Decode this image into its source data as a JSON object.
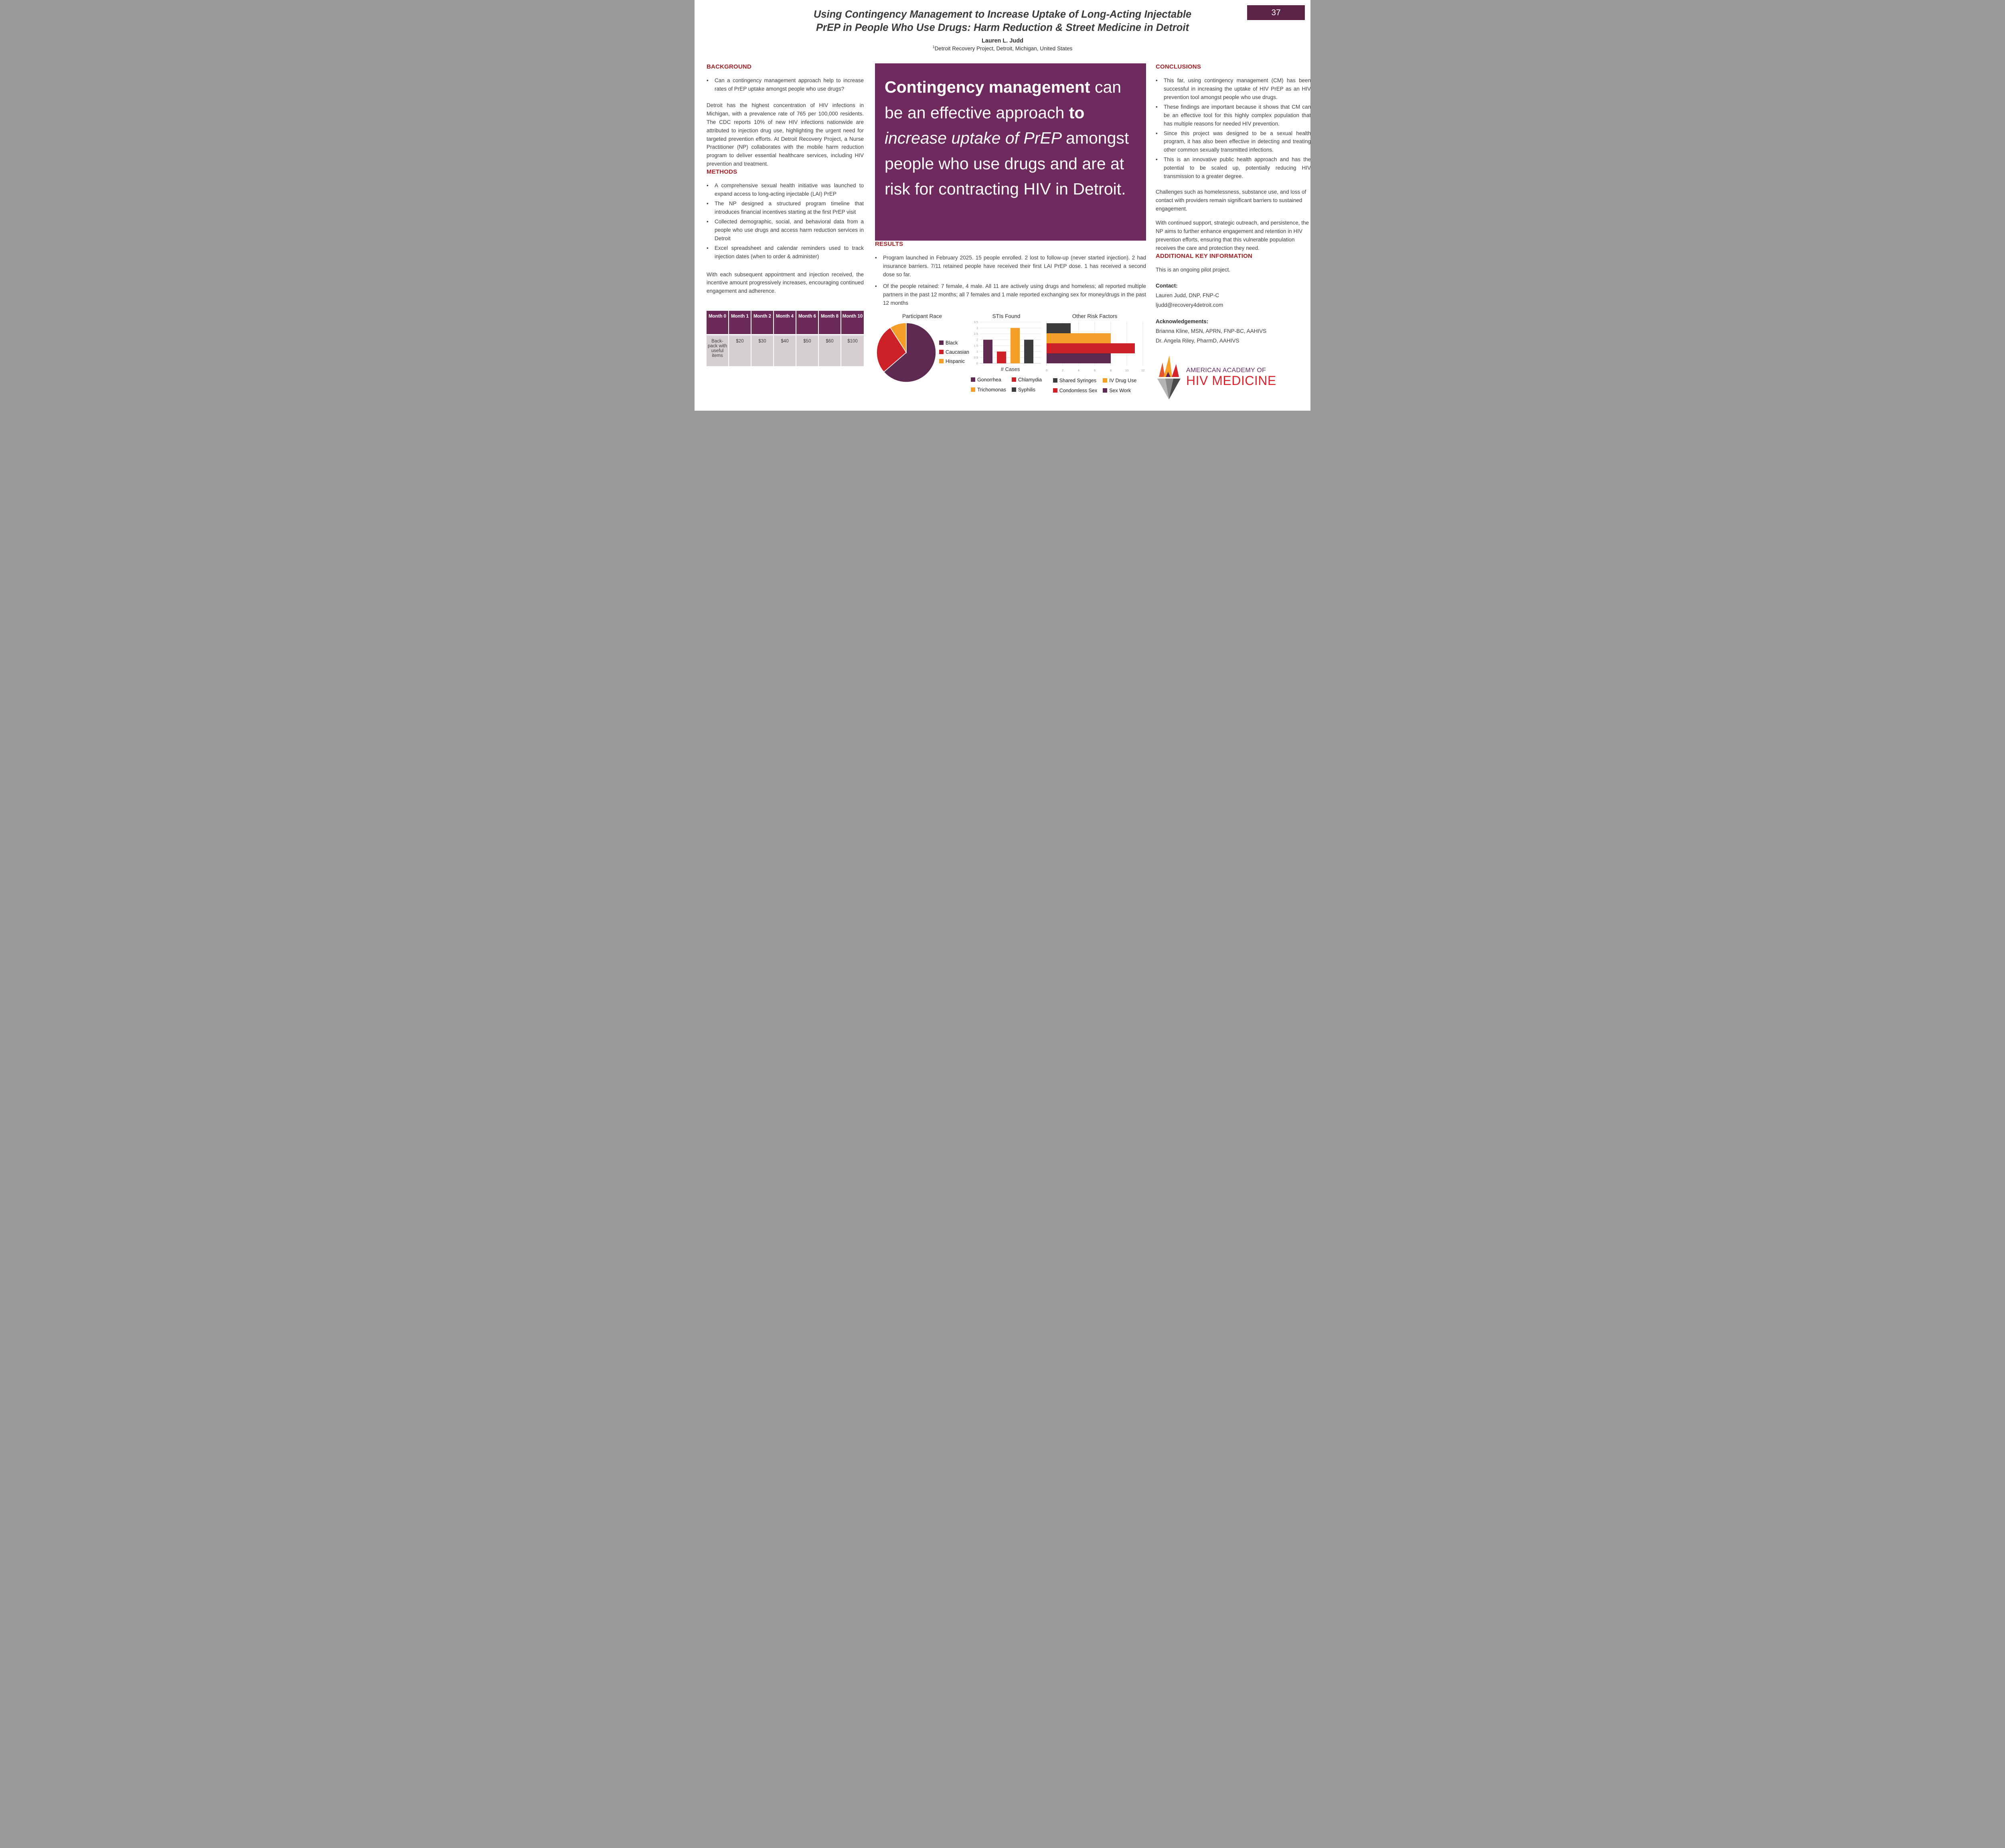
{
  "poster": {
    "badge": "37",
    "title_line1": "Using Contingency Management to Increase Uptake of Long-Acting Injectable",
    "title_line2": "PrEP in People Who Use Drugs: Harm Reduction & Street Medicine in Detroit",
    "author": "Lauren L. Judd",
    "affiliation_sup": "1",
    "affiliation": "Detroit Recovery Project, Detroit, Michigan, United States"
  },
  "left": {
    "background": {
      "heading": "BACKGROUND",
      "bullets": [
        "Can a contingency management approach help to increase rates of PrEP uptake amongst people who use drugs?"
      ],
      "paragraph": "Detroit has the highest concentration of HIV infections in Michigan, with a prevalence rate of 765 per 100,000 residents. The CDC reports 10% of new HIV infections nationwide are attributed to injection drug use, highlighting the urgent need for targeted prevention efforts. At Detroit Recovery Project, a Nurse Practitioner (NP) collaborates with the mobile harm reduction program to deliver essential healthcare services, including HIV prevention and treatment."
    },
    "methods": {
      "heading": "METHODS",
      "bullets": [
        "A comprehensive sexual health initiative was launched to expand access to long-acting injectable (LAI) PrEP",
        "The NP designed a structured program timeline that introduces financial incentives starting at the first PrEP visit",
        "Collected demographic, social, and behavioral data from a people who use drugs and access harm reduction services in Detroit",
        "Excel spreadsheet and calendar reminders used to track injection dates (when to order & administer)"
      ],
      "paragraph": "With each subsequent appointment and injection received, the incentive amount progressively increases, encouraging continued engagement and adherence."
    },
    "incentive_table": {
      "headers": [
        "Month 0",
        "Month 1",
        "Month 2",
        "Month 4",
        "Month 6",
        "Month 8",
        "Month 10"
      ],
      "row": [
        "Back-pack with useful items",
        "$20",
        "$30",
        "$40",
        "$50",
        "$60",
        "$100"
      ]
    }
  },
  "center": {
    "quote": {
      "parts": [
        {
          "text": "Contingency management ",
          "style": "bold"
        },
        {
          "text": "can be an effective approach ",
          "style": "normal"
        },
        {
          "text": "to ",
          "style": "bold"
        },
        {
          "text": "increase uptake of PrEP ",
          "style": "italic"
        },
        {
          "text": "amongst people who use drugs and are at risk for contracting HIV in Detroit.",
          "style": "normal"
        }
      ]
    },
    "results": {
      "heading": "RESULTS",
      "bullets": [
        "Program launched in February 2025. 15 people enrolled. 2 lost to follow-up (never started injection). 2 had insurance barriers. 7/11 retained people have received their first LAI PrEP dose. 1 has received a second dose so far.",
        "Of the people retained: 7 female, 4 male. All 11 are actively using drugs and homeless; all reported multiple partners in the past 12 months; all 7 females and 1 male reported exchanging sex for money/drugs in the past 12 months"
      ]
    }
  },
  "right": {
    "conclusions": {
      "heading": "CONCLUSIONS",
      "bullets": [
        "This far, using contingency management (CM) has been successful in increasing the uptake of HIV PrEP as an HIV prevention tool amongst people who use drugs.",
        "These findings are important because it shows that CM can be an effective tool for this highly complex population that has multiple reasons for needed HIV prevention.",
        "Since this project was designed to be a sexual health program, it has also been effective in detecting and treating other common sexually transmitted infections.",
        "This is an innovative public health approach and has the potential to be scaled up, potentially reducing HIV transmission to a greater degree."
      ],
      "paragraph1": "Challenges such as homelessness, substance use, and loss of contact with providers remain significant barriers to sustained engagement.",
      "paragraph2": "With continued support, strategic outreach, and persistence, the NP aims to further enhance engagement and retention in HIV prevention efforts, ensuring that this vulnerable population receives the care and protection they need."
    },
    "additional": {
      "heading": "ADDITIONAL KEY INFORMATION",
      "text": "This is an ongoing pilot project.",
      "contact_label": "Contact:",
      "contact_name": "Lauren Judd, DNP, FNP-C",
      "contact_email": "ljudd@recovery4detroit.com",
      "ack_label": "Acknowledgements:",
      "ack_lines": [
        "Brianna Kline, MSN, APRN, FNP-BC, AAHIVS",
        "Dr.  Angela  Riley,  PharmD, AAHIVS"
      ]
    },
    "logo": {
      "line1": "AMERICAN ACADEMY OF",
      "line2": "HIV MEDICINE"
    }
  },
  "chart_data": [
    {
      "type": "pie",
      "title": "Participant Race",
      "labels": [
        "Black",
        "Caucasian",
        "Hispanic"
      ],
      "values": [
        7,
        3,
        1
      ],
      "percents": [
        63.6,
        27.3,
        9.1
      ],
      "colors": [
        "#5F2A52",
        "#CE2027",
        "#F49D28"
      ],
      "legend_position": "right",
      "start_angle_deg": 0,
      "direction": "clockwise"
    },
    {
      "type": "bar",
      "title": "STIs Found",
      "xlabel": "# Cases",
      "categories": [
        "Gonorrhea",
        "Chlamydia",
        "Trichomonas",
        "Syphilis"
      ],
      "values": [
        2,
        1,
        3,
        2
      ],
      "colors": [
        "#5F2A52",
        "#CE2027",
        "#F49D28",
        "#3B3B3B"
      ],
      "ylim": [
        0,
        3.5
      ],
      "ytick_step": 0.5,
      "grid": true,
      "legend_position": "bottom"
    },
    {
      "type": "hbar",
      "title": "Other Risk Factors",
      "categories": [
        "Shared Syringes",
        "IV Drug Use",
        "Condomless Sex",
        "Sex Work"
      ],
      "values": [
        3,
        8,
        11,
        8
      ],
      "colors": [
        "#3B3B3B",
        "#F49D28",
        "#CE2027",
        "#5F2A52"
      ],
      "xlim": [
        0,
        12
      ],
      "xtick_step": 2,
      "grid": true,
      "legend_position": "bottom"
    }
  ],
  "colors": {
    "badge_bg": "#5C2347",
    "quote_box_bg": "#6E2A5C",
    "section_heading": "#A32022",
    "table_header_bg": "#6B2A58",
    "table_body_bg": "#D5CFD3",
    "body_text": "#3E3E3C",
    "logo_purple": "#652D62",
    "logo_red": "#D8242C"
  }
}
